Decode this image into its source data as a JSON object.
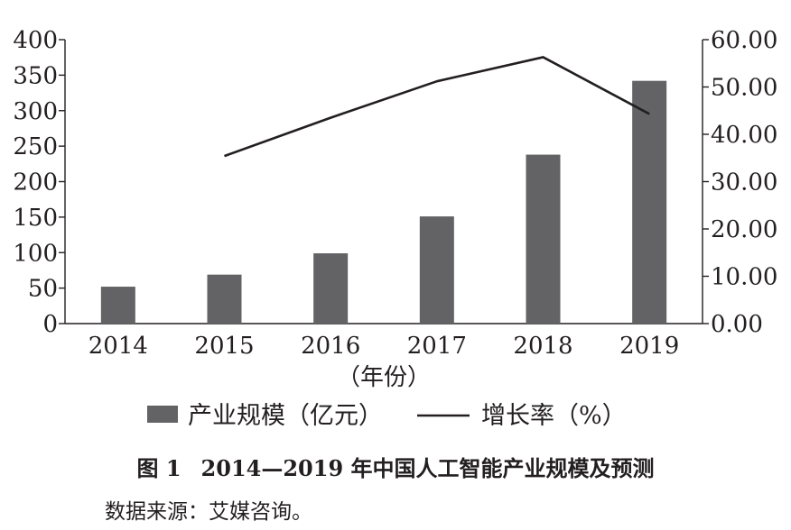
{
  "chart_data": {
    "type": "bar",
    "categories": [
      "2014",
      "2015",
      "2016",
      "2017",
      "2018",
      "2019"
    ],
    "series": [
      {
        "name": "产业规模（亿元）",
        "type": "bar",
        "axis": "left",
        "values": [
          52,
          69,
          99,
          151,
          238,
          342
        ]
      },
      {
        "name": "增长率（%）",
        "type": "line",
        "axis": "right",
        "values": [
          null,
          35.4,
          43.5,
          51.2,
          56.3,
          44.3
        ]
      }
    ],
    "xlabel": "（年份）",
    "yaxis_left": {
      "ylim": [
        0,
        400
      ],
      "ticks": [
        "0",
        "50",
        "100",
        "150",
        "200",
        "250",
        "300",
        "350",
        "400"
      ]
    },
    "yaxis_right": {
      "ylim": [
        0,
        60
      ],
      "ticks": [
        "0.00",
        "10.00",
        "20.00",
        "30.00",
        "40.00",
        "50.00",
        "60.00"
      ]
    },
    "legend_position": "bottom",
    "grid": false,
    "colors": {
      "bar": "#636365",
      "line": "#231f20",
      "axis": "#231f20"
    }
  },
  "caption": {
    "number": "图 1",
    "text": "2014—2019 年中国人工智能产业规模及预测"
  },
  "source": {
    "label": "数据来源：",
    "text": "艾媒咨询。"
  }
}
